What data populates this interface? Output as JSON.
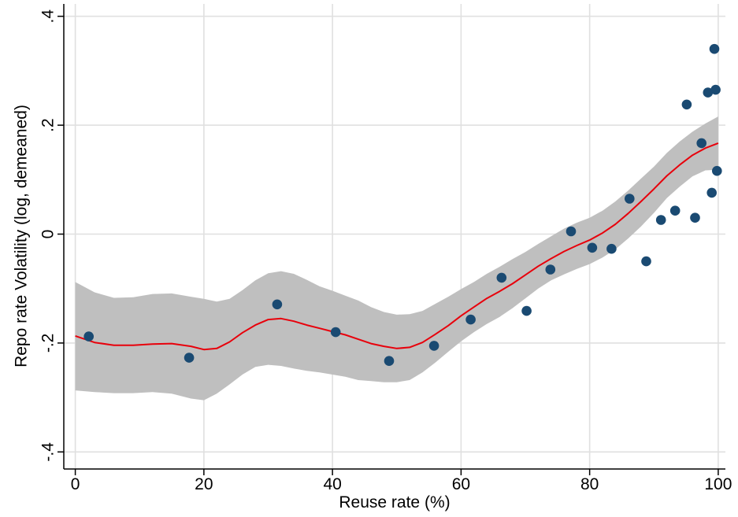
{
  "chart_data": {
    "type": "scatter",
    "title": "",
    "xlabel": "Reuse rate (%)",
    "ylabel": "Repo rate Volatility (log, demeaned)",
    "xlim": [
      -2,
      101
    ],
    "ylim": [
      -0.44,
      0.41
    ],
    "x_ticks": [
      0,
      20,
      40,
      60,
      80,
      100
    ],
    "x_tick_labels": [
      "0",
      "20",
      "40",
      "60",
      "80",
      "100"
    ],
    "y_ticks": [
      -0.4,
      -0.2,
      0,
      0.2,
      0.4
    ],
    "y_tick_labels": [
      "-.4",
      "-.2",
      "0",
      ".2",
      ".4"
    ],
    "grid": true,
    "legend": "none",
    "colors": {
      "points": "#1a4a72",
      "fit_line": "#e8000b",
      "ci_band": "#bfbfbf",
      "grid": "#e0e0e0",
      "axis": "#000000"
    },
    "series": [
      {
        "type": "scatter",
        "points": [
          [
            2.1,
            -0.188
          ],
          [
            17.7,
            -0.227
          ],
          [
            31.4,
            -0.129
          ],
          [
            40.5,
            -0.18
          ],
          [
            48.8,
            -0.233
          ],
          [
            55.8,
            -0.205
          ],
          [
            61.5,
            -0.157
          ],
          [
            66.3,
            -0.08
          ],
          [
            70.2,
            -0.141
          ],
          [
            73.9,
            -0.065
          ],
          [
            77.1,
            0.005
          ],
          [
            80.4,
            -0.025
          ],
          [
            83.4,
            -0.027
          ],
          [
            86.2,
            0.065
          ],
          [
            88.8,
            -0.05
          ],
          [
            91.1,
            0.026
          ],
          [
            93.3,
            0.043
          ],
          [
            95.1,
            0.238
          ],
          [
            96.4,
            0.03
          ],
          [
            97.4,
            0.167
          ],
          [
            98.4,
            0.26
          ],
          [
            99.0,
            0.076
          ],
          [
            99.4,
            0.34
          ],
          [
            99.6,
            0.265
          ],
          [
            99.8,
            0.116
          ]
        ]
      },
      {
        "type": "line",
        "x": [
          0,
          3,
          6,
          9,
          12,
          15,
          18,
          20,
          22,
          24,
          26,
          28,
          30,
          32,
          34,
          36,
          38,
          40,
          42,
          44,
          46,
          48,
          50,
          52,
          54,
          56,
          58,
          60,
          62,
          64,
          66,
          68,
          70,
          72,
          74,
          76,
          78,
          80,
          82,
          84,
          86,
          88,
          90,
          92,
          94,
          96,
          98,
          100
        ],
        "y": [
          -0.187,
          -0.199,
          -0.204,
          -0.204,
          -0.202,
          -0.201,
          -0.206,
          -0.212,
          -0.21,
          -0.198,
          -0.181,
          -0.167,
          -0.157,
          -0.155,
          -0.16,
          -0.167,
          -0.173,
          -0.179,
          -0.185,
          -0.193,
          -0.201,
          -0.206,
          -0.21,
          -0.208,
          -0.199,
          -0.184,
          -0.168,
          -0.15,
          -0.134,
          -0.118,
          -0.105,
          -0.091,
          -0.075,
          -0.059,
          -0.045,
          -0.032,
          -0.021,
          -0.011,
          0.002,
          0.018,
          0.038,
          0.06,
          0.083,
          0.107,
          0.127,
          0.145,
          0.158,
          0.167
        ],
        "lower": [
          -0.287,
          -0.29,
          -0.292,
          -0.292,
          -0.29,
          -0.293,
          -0.302,
          -0.305,
          -0.293,
          -0.276,
          -0.258,
          -0.244,
          -0.24,
          -0.242,
          -0.247,
          -0.251,
          -0.254,
          -0.258,
          -0.262,
          -0.268,
          -0.27,
          -0.272,
          -0.272,
          -0.268,
          -0.254,
          -0.236,
          -0.216,
          -0.197,
          -0.18,
          -0.165,
          -0.152,
          -0.136,
          -0.118,
          -0.1,
          -0.085,
          -0.074,
          -0.064,
          -0.055,
          -0.043,
          -0.028,
          -0.008,
          0.014,
          0.039,
          0.066,
          0.087,
          0.106,
          0.117,
          0.118
        ],
        "upper": [
          -0.088,
          -0.107,
          -0.117,
          -0.116,
          -0.11,
          -0.109,
          -0.115,
          -0.119,
          -0.124,
          -0.119,
          -0.103,
          -0.085,
          -0.072,
          -0.068,
          -0.073,
          -0.084,
          -0.096,
          -0.104,
          -0.113,
          -0.122,
          -0.134,
          -0.143,
          -0.148,
          -0.147,
          -0.141,
          -0.128,
          -0.115,
          -0.101,
          -0.088,
          -0.073,
          -0.06,
          -0.046,
          -0.033,
          -0.018,
          -0.004,
          0.01,
          0.021,
          0.03,
          0.043,
          0.06,
          0.08,
          0.102,
          0.124,
          0.149,
          0.17,
          0.188,
          0.203,
          0.216
        ]
      }
    ]
  }
}
